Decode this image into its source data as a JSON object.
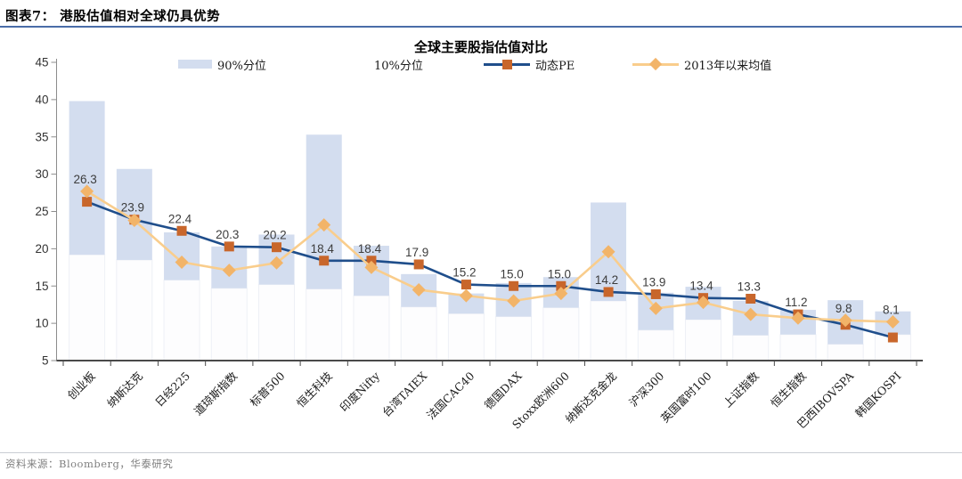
{
  "header": {
    "title": "图表7：  港股估值相对全球仍具优势"
  },
  "footer": {
    "source": "资料来源：Bloomberg，华泰研究"
  },
  "legend": {
    "p90": "90%分位",
    "p10": "10%分位",
    "pe": "动态PE",
    "mean": "2013年以来均值"
  },
  "chart_data": {
    "type": "bar",
    "subtype": "range-band with two line series",
    "title": "全球主要股指估值对比",
    "xlabel": "",
    "ylabel": "",
    "ylim": [
      5,
      45
    ],
    "yticks": [
      5,
      10,
      15,
      20,
      25,
      30,
      35,
      40,
      45
    ],
    "grid": false,
    "legend_position": "top",
    "categories": [
      "创业板",
      "纳斯达克",
      "日经225",
      "道琼斯指数",
      "标普500",
      "恒生科技",
      "印度Nifty",
      "台湾TAIEX",
      "法国CAC40",
      "德国DAX",
      "Stoxx欧洲600",
      "纳斯达克金龙",
      "沪深300",
      "英国富时100",
      "上证指数",
      "恒生指数",
      "巴西IBOVSPA",
      "韩国KOSPI"
    ],
    "series": [
      {
        "name": "90%分位",
        "type": "band_top",
        "values": [
          39.8,
          30.7,
          22.2,
          20.3,
          21.9,
          35.3,
          20.4,
          16.6,
          14.0,
          15.4,
          16.2,
          26.2,
          14.1,
          14.9,
          13.0,
          11.8,
          13.1,
          11.6
        ]
      },
      {
        "name": "10%分位",
        "type": "band_bottom",
        "values": [
          19.2,
          18.5,
          15.8,
          14.7,
          15.2,
          14.6,
          13.7,
          12.2,
          11.3,
          10.9,
          12.1,
          13.0,
          9.1,
          10.5,
          8.4,
          8.5,
          7.2,
          8.5
        ]
      },
      {
        "name": "动态PE",
        "type": "line",
        "marker": "square",
        "data_labels": true,
        "values": [
          26.3,
          23.9,
          22.4,
          20.3,
          20.2,
          18.4,
          18.4,
          17.9,
          15.2,
          15.0,
          15.0,
          14.2,
          13.9,
          13.4,
          13.3,
          11.2,
          9.8,
          8.1
        ]
      },
      {
        "name": "2013年以来均值",
        "type": "line",
        "marker": "diamond",
        "data_labels": false,
        "values": [
          27.7,
          23.8,
          18.2,
          17.1,
          18.1,
          23.2,
          17.5,
          14.5,
          13.7,
          13.0,
          14.0,
          19.6,
          12.0,
          12.8,
          11.2,
          10.7,
          10.4,
          10.2
        ]
      }
    ],
    "colors": {
      "band": "#d3ddef",
      "base_bar_fill": "#fdfdfe",
      "base_bar_stroke": "#eef0f6",
      "pe_line": "#1f4e8b",
      "pe_marker": "#c8662b",
      "mean_line": "#f9cd8c",
      "mean_marker": "#f2b469",
      "data_label": "#3d3d3d",
      "axis": "#8c8c8c",
      "axis_bottom": "#4a4a4a",
      "tick_label": "#333333",
      "x_label": "#1a1a1a"
    }
  }
}
